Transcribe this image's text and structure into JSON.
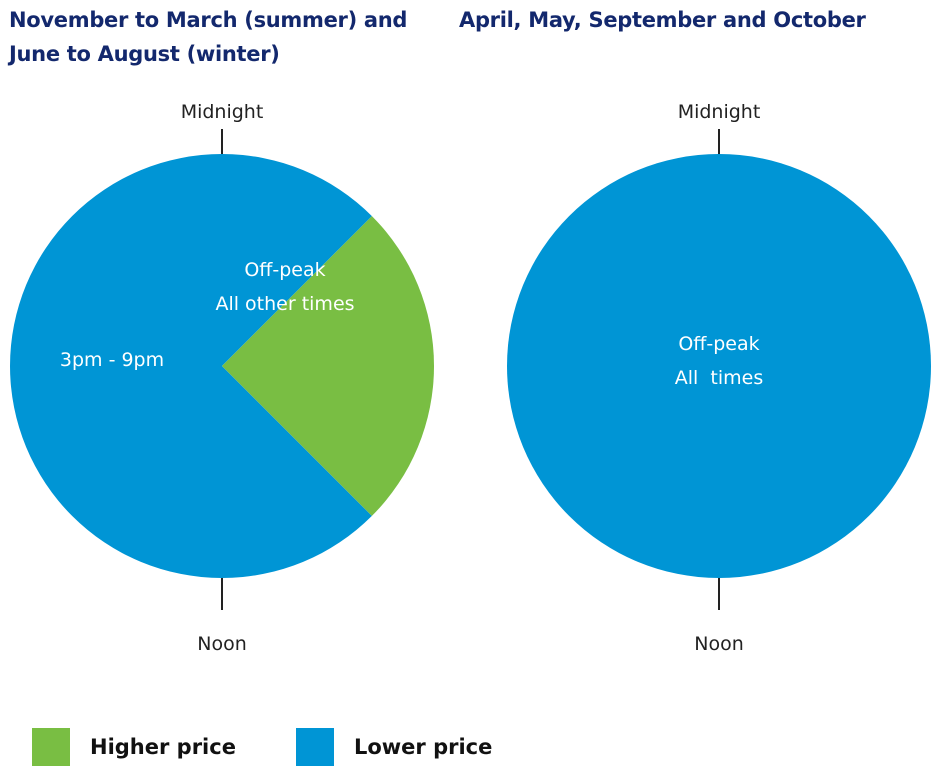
{
  "colors": {
    "higher": "#79be43",
    "lower": "#0095d5",
    "title": "#13286d"
  },
  "chart_data": [
    {
      "type": "pie",
      "title": "November to March (summer) and June to August (winter)",
      "top_marker": "Midnight",
      "bottom_marker": "Noon",
      "slices": [
        {
          "name": "Higher price",
          "label": "3pm - 9pm",
          "start_hour": 15,
          "end_hour": 21,
          "color": "#79be43"
        },
        {
          "name": "Lower price",
          "label": [
            "Off-peak",
            "All other times"
          ],
          "start_hour": 21,
          "end_hour": 15,
          "color": "#0095d5"
        }
      ]
    },
    {
      "type": "pie",
      "title": "April, May, September and October",
      "top_marker": "Midnight",
      "bottom_marker": "Noon",
      "slices": [
        {
          "name": "Lower price",
          "label": [
            "Off-peak",
            "All  times"
          ],
          "start_hour": 0,
          "end_hour": 24,
          "color": "#0095d5"
        }
      ]
    }
  ],
  "legend": {
    "higher": "Higher price",
    "lower": "Lower price"
  }
}
